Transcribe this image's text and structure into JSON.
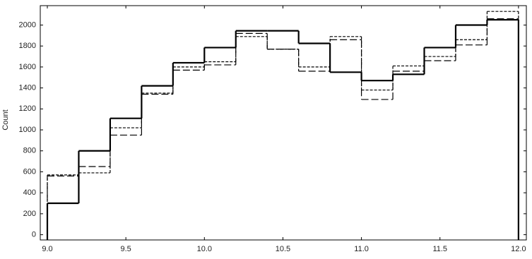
{
  "chart_data": {
    "type": "histogram",
    "ylabel": "Count",
    "bins": [
      9.0,
      9.2,
      9.4,
      9.6,
      9.8,
      10.0,
      10.2,
      10.4,
      10.6,
      10.8,
      11.0,
      11.2,
      11.4,
      11.6,
      11.8,
      12.0
    ],
    "series": [
      {
        "color": "#000000",
        "linestyle": "solid",
        "values": [
          300,
          800,
          1110,
          1420,
          1640,
          1785,
          1945,
          1945,
          1825,
          1550,
          1470,
          1530,
          1785,
          2000,
          2050
        ]
      },
      {
        "color": "#000000",
        "linestyle": "dashed",
        "values": [
          560,
          650,
          950,
          1340,
          1570,
          1620,
          1920,
          1770,
          1560,
          1860,
          1290,
          1560,
          1660,
          1810,
          2060
        ]
      },
      {
        "color": "#000000",
        "linestyle": "dotted",
        "values": [
          570,
          590,
          1020,
          1350,
          1600,
          1650,
          1890,
          1770,
          1600,
          1890,
          1380,
          1610,
          1700,
          1860,
          2130
        ]
      }
    ],
    "xlim": [
      8.955,
      12.05
    ],
    "ylim": [
      -50,
      2185
    ],
    "xticks": [
      {
        "value": 9,
        "label": "9.0"
      },
      9.5,
      {
        "value": 10,
        "label": "10.0"
      },
      10.5,
      {
        "value": 11,
        "label": "11.0"
      },
      11.5,
      {
        "value": 12,
        "label": "12.0"
      }
    ],
    "yticks": [
      0,
      200,
      400,
      600,
      800,
      1000,
      1200,
      1400,
      1600,
      1800,
      2000
    ]
  }
}
